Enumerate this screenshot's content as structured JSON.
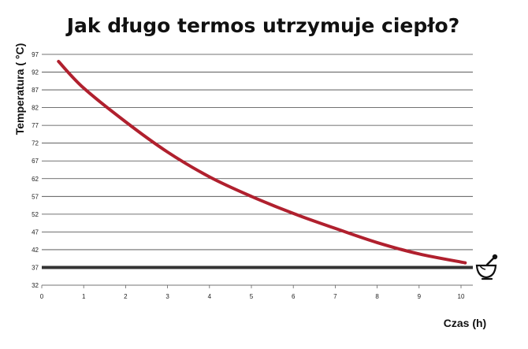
{
  "chart_data": {
    "type": "line",
    "title": "Jak długo termos utrzymuje ciepło?",
    "xlabel": "Czas (h)",
    "ylabel": "Temperatura ( °C)",
    "xlim": [
      0,
      10.2
    ],
    "ylim": [
      32,
      97
    ],
    "x_ticks": [
      0,
      1,
      2,
      3,
      4,
      5,
      6,
      7,
      8,
      9,
      10
    ],
    "y_ticks": [
      32,
      37,
      42,
      47,
      52,
      57,
      62,
      67,
      72,
      77,
      82,
      87,
      92,
      97
    ],
    "grid": "horizontal",
    "series": [
      {
        "color": "#b0202e",
        "x": [
          0.4,
          1,
          2,
          3,
          4,
          5,
          6,
          7,
          8,
          9,
          10.1
        ],
        "y": [
          95,
          87.5,
          78,
          69.5,
          62.5,
          57,
          52.2,
          48,
          44,
          40.8,
          38.3
        ]
      }
    ],
    "reference_line": {
      "y": 37,
      "color": "#333333"
    },
    "icon": "mortar-and-pestle-icon"
  }
}
